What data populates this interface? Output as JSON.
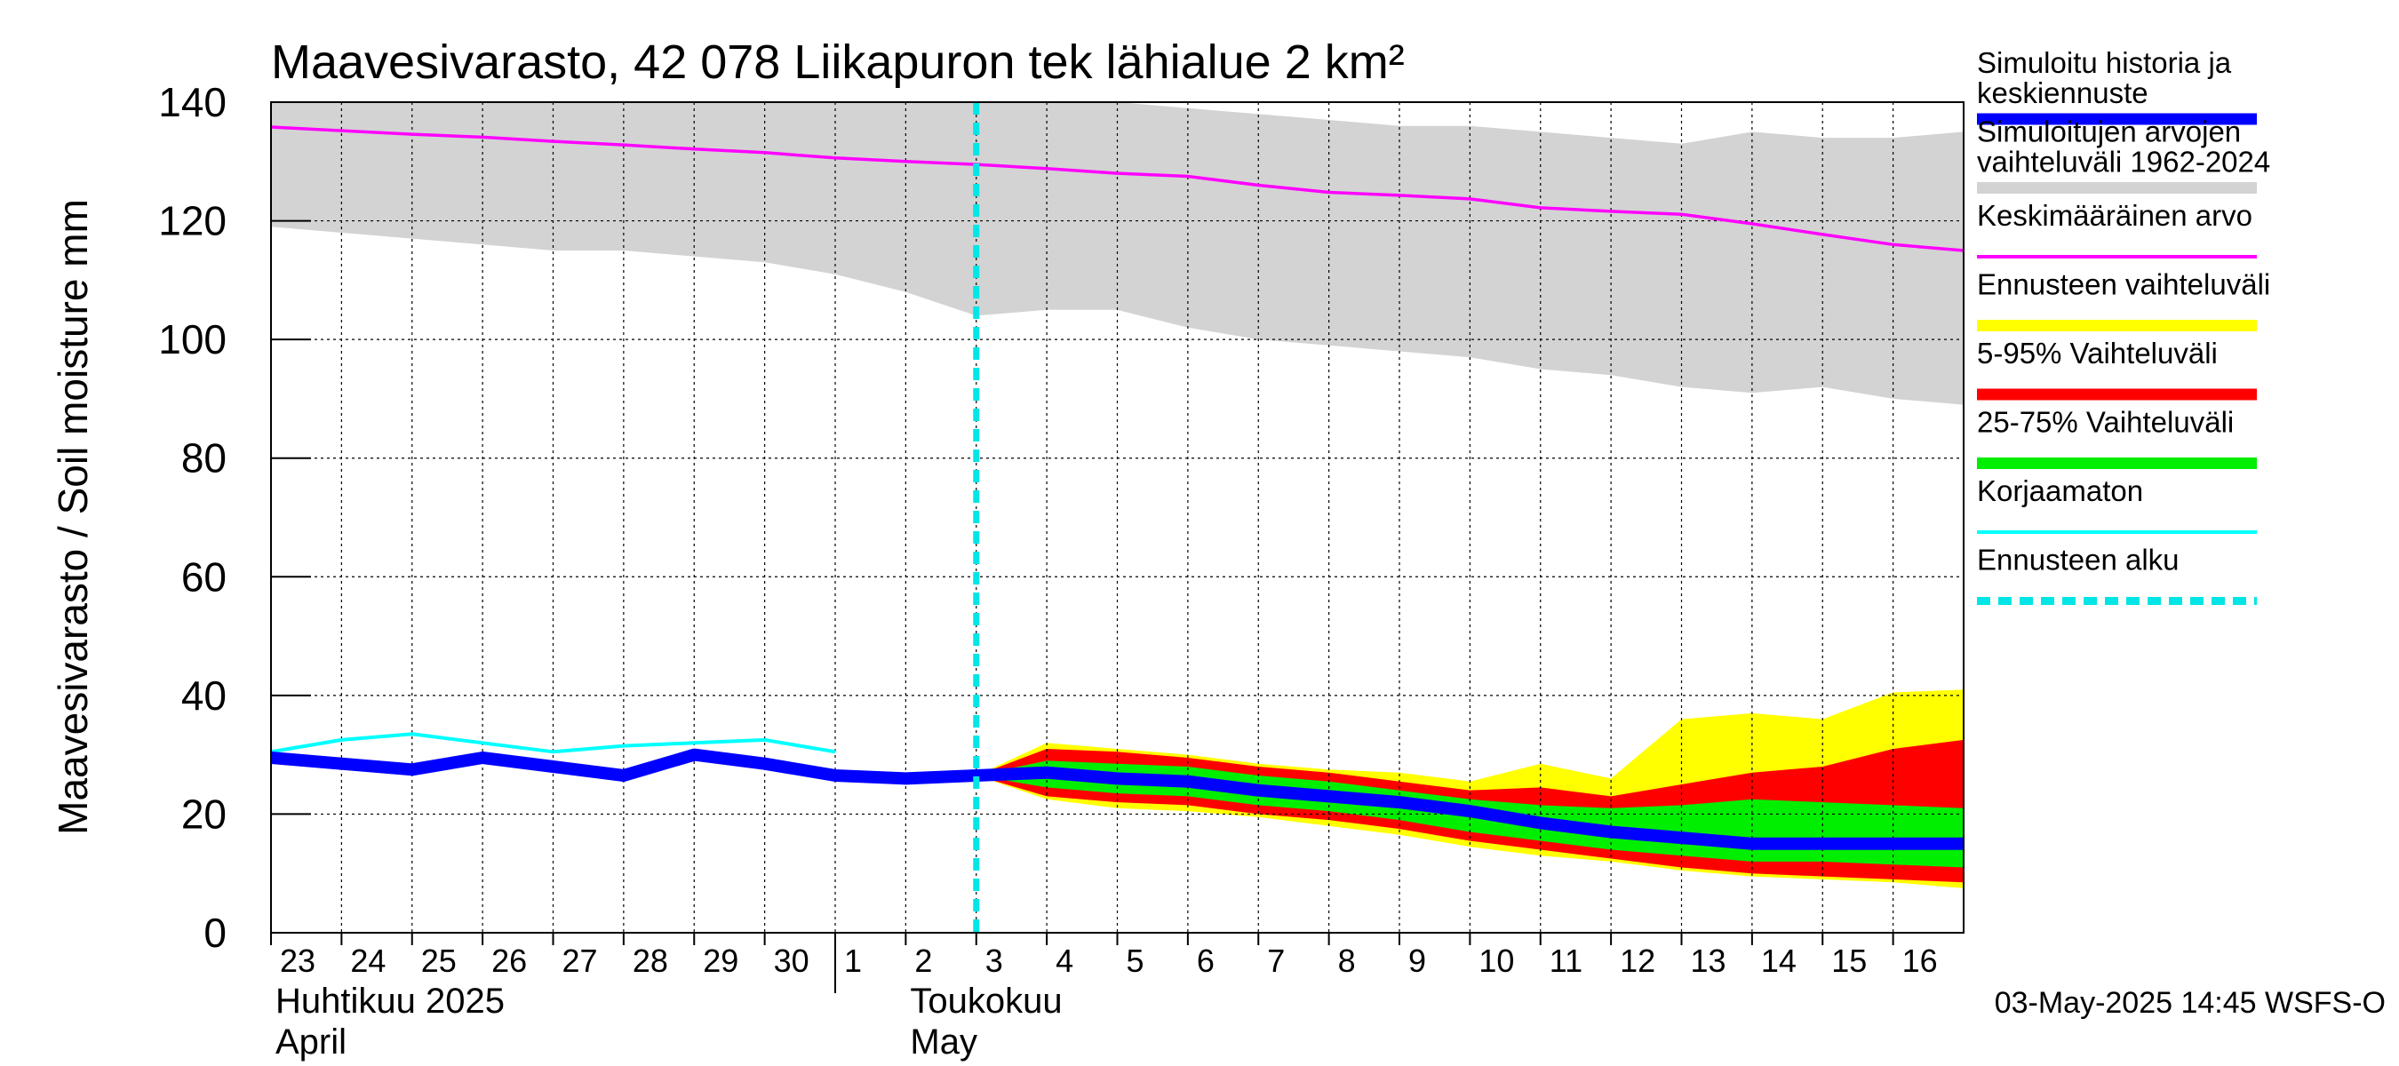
{
  "chart_data": {
    "type": "area",
    "title": "Maavesivarasto, 42 078 Liikapuron tek lähialue 2 km²",
    "ylabel": "Maavesivarasto / Soil moisture   mm",
    "ylim": [
      0,
      140
    ],
    "yticks": [
      0,
      20,
      40,
      60,
      80,
      100,
      120,
      140
    ],
    "xlim": [
      0,
      24
    ],
    "grid": true,
    "legend_position": "right",
    "day_labels": [
      "23",
      "24",
      "25",
      "26",
      "27",
      "28",
      "29",
      "30",
      "1",
      "2",
      "3",
      "4",
      "5",
      "6",
      "7",
      "8",
      "9",
      "10",
      "11",
      "12",
      "13",
      "14",
      "15",
      "16"
    ],
    "month_labels": [
      {
        "line1": "Huhtikuu  2025",
        "line2": "April",
        "x": 0
      },
      {
        "line1": "Toukokuu",
        "line2": "May",
        "x": 9
      }
    ],
    "month_boundary_x": 8,
    "forecast_start_x": 10,
    "footer": "03-May-2025 14:45 WSFS-O",
    "legend": [
      {
        "key": "history",
        "label_lines": [
          "Simuloitu historia ja",
          "keskiennuste"
        ],
        "color": "#0000ff",
        "style": "thick"
      },
      {
        "key": "range",
        "label_lines": [
          "Simuloitujen arvojen",
          "vaihteluväli 1962-2024"
        ],
        "color": "#d3d3d3",
        "style": "thick"
      },
      {
        "key": "mean",
        "label_lines": [
          "Keskimääräinen arvo"
        ],
        "color": "#ff00ff",
        "style": "thin"
      },
      {
        "key": "fc_range",
        "label_lines": [
          "Ennusteen vaihteluväli"
        ],
        "color": "#ffff00",
        "style": "thick"
      },
      {
        "key": "p5_95",
        "label_lines": [
          "5-95% Vaihteluväli"
        ],
        "color": "#ff0000",
        "style": "thick"
      },
      {
        "key": "p25_75",
        "label_lines": [
          "25-75% Vaihteluväli"
        ],
        "color": "#00ee00",
        "style": "thick"
      },
      {
        "key": "raw",
        "label_lines": [
          "Korjaamaton"
        ],
        "color": "#00ffff",
        "style": "thin"
      },
      {
        "key": "fc_start",
        "label_lines": [
          "Ennusteen alku"
        ],
        "color": "#00e5e5",
        "style": "dashed"
      }
    ],
    "series": {
      "hist_range": {
        "x": [
          0,
          1,
          2,
          3,
          4,
          5,
          6,
          7,
          8,
          9,
          10,
          11,
          12,
          13,
          14,
          15,
          16,
          17,
          18,
          19,
          20,
          21,
          22,
          23,
          24
        ],
        "low": [
          119,
          118,
          117,
          116,
          115,
          115,
          114,
          113,
          111,
          108,
          104,
          105,
          105,
          102,
          100,
          99,
          98,
          97,
          95,
          94,
          92,
          91,
          92,
          90,
          89
        ],
        "high": [
          140,
          140,
          140,
          140,
          140,
          140,
          140,
          140,
          140,
          140,
          140,
          140,
          140,
          139,
          138,
          137,
          136,
          136,
          135,
          134,
          133,
          135,
          134,
          134,
          135
        ]
      },
      "mean": {
        "x": [
          0,
          1,
          2,
          3,
          4,
          5,
          6,
          7,
          8,
          9,
          10,
          11,
          12,
          13,
          14,
          15,
          16,
          17,
          18,
          19,
          20,
          21,
          22,
          23,
          24
        ],
        "y": [
          135.8,
          135.2,
          134.6,
          134.1,
          133.4,
          132.8,
          132.1,
          131.5,
          130.6,
          130.0,
          129.5,
          128.8,
          128.0,
          127.5,
          126.0,
          124.8,
          124.3,
          123.7,
          122.2,
          121.6,
          121.1,
          119.5,
          117.7,
          116.0,
          115.0
        ]
      },
      "fc_range": {
        "x": [
          10,
          11,
          12,
          13,
          14,
          15,
          16,
          17,
          18,
          19,
          20,
          21,
          22,
          23,
          24
        ],
        "low": [
          26.5,
          22.5,
          21.0,
          20.5,
          19.5,
          18.0,
          16.5,
          14.5,
          13.0,
          12.0,
          10.5,
          9.5,
          9.0,
          8.5,
          7.5
        ],
        "high": [
          26.5,
          32.0,
          31.0,
          30.0,
          28.5,
          27.5,
          27.0,
          25.5,
          28.5,
          26.0,
          36.0,
          37.0,
          36.0,
          40.5,
          41.0
        ]
      },
      "p5_95": {
        "x": [
          10,
          11,
          12,
          13,
          14,
          15,
          16,
          17,
          18,
          19,
          20,
          21,
          22,
          23,
          24
        ],
        "low": [
          26.5,
          23.0,
          22.0,
          21.5,
          20.0,
          19.0,
          17.5,
          15.5,
          14.0,
          12.5,
          11.0,
          10.0,
          9.5,
          9.0,
          8.5
        ],
        "high": [
          26.5,
          31.0,
          30.5,
          29.5,
          28.0,
          27.0,
          25.5,
          24.0,
          24.5,
          23.0,
          25.0,
          27.0,
          28.0,
          31.0,
          32.5
        ]
      },
      "p25_75": {
        "x": [
          10,
          11,
          12,
          13,
          14,
          15,
          16,
          17,
          18,
          19,
          20,
          21,
          22,
          23,
          24
        ],
        "low": [
          26.5,
          24.5,
          23.5,
          23.0,
          21.5,
          20.5,
          19.0,
          17.0,
          15.5,
          14.0,
          13.0,
          12.0,
          12.0,
          11.5,
          11.0
        ],
        "high": [
          26.5,
          29.0,
          28.5,
          28.0,
          26.5,
          25.5,
          24.0,
          22.5,
          21.5,
          21.0,
          21.5,
          22.5,
          22.0,
          21.5,
          21.0
        ]
      },
      "history": {
        "x": [
          0,
          1,
          2,
          3,
          4,
          5,
          6,
          7,
          8,
          9,
          10,
          11,
          12,
          13,
          14,
          15,
          16,
          17,
          18,
          19,
          20,
          21,
          22,
          23,
          24
        ],
        "y": [
          29.5,
          28.5,
          27.5,
          29.5,
          28.0,
          26.5,
          30.0,
          28.5,
          26.5,
          26.0,
          26.5,
          27.0,
          26.0,
          25.5,
          24.0,
          23.0,
          22.0,
          20.5,
          18.5,
          17.0,
          16.0,
          15.0,
          15.0,
          15.0,
          15.0
        ]
      },
      "raw": {
        "x": [
          0,
          1,
          2,
          3,
          4,
          5,
          6,
          7,
          8
        ],
        "y": [
          30.5,
          32.5,
          33.5,
          32.0,
          30.5,
          31.5,
          32.0,
          32.5,
          30.5
        ]
      }
    }
  }
}
